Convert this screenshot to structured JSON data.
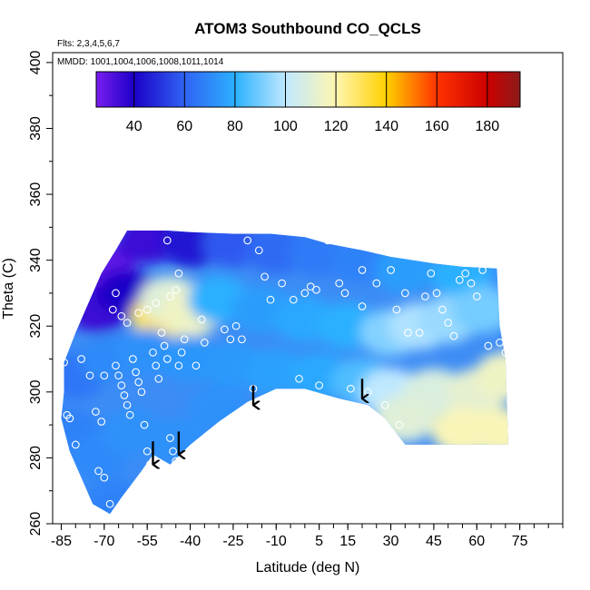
{
  "chart_data": {
    "type": "heatmap",
    "title": "ATOM3 Southbound CO_QCLS",
    "annotations": [
      "Flts: 2,3,4,5,6,7",
      "MMDD: 1001,1004,1006,1008,1011,1014"
    ],
    "xlabel": "Latitude (deg N)",
    "ylabel": "Theta (C)",
    "xlim": [
      -88,
      90
    ],
    "ylim": [
      260,
      403
    ],
    "x_ticks": [
      -85,
      -70,
      -55,
      -40,
      -25,
      -10,
      5,
      15,
      30,
      45,
      60,
      75
    ],
    "y_ticks": [
      260,
      280,
      300,
      320,
      340,
      360,
      380,
      400
    ],
    "x_tick_labels": [
      "-85",
      "-70",
      "-55",
      "-40",
      "-25",
      "-10",
      "5",
      "15",
      "30",
      "45",
      "60",
      "75"
    ],
    "y_tick_labels": [
      "260",
      "280",
      "300",
      "320",
      "340",
      "360",
      "380",
      "400"
    ],
    "colorbar": {
      "range": [
        25,
        193
      ],
      "ticks": [
        40,
        60,
        80,
        100,
        120,
        140,
        160,
        180
      ],
      "tick_labels": [
        "40",
        "60",
        "80",
        "100",
        "120",
        "140",
        "160",
        "180"
      ],
      "stops": [
        {
          "v": 25,
          "c": "#7a1df0"
        },
        {
          "v": 40,
          "c": "#1c00c8"
        },
        {
          "v": 60,
          "c": "#2f63f3"
        },
        {
          "v": 80,
          "c": "#2bb0ff"
        },
        {
          "v": 100,
          "c": "#bfe8ff"
        },
        {
          "v": 120,
          "c": "#fff6b0"
        },
        {
          "v": 140,
          "c": "#ffd000"
        },
        {
          "v": 160,
          "c": "#ff3300"
        },
        {
          "v": 180,
          "c": "#cc0000"
        },
        {
          "v": 193,
          "c": "#8c1a1a"
        }
      ]
    },
    "field_outline": [
      [
        -84,
        309
      ],
      [
        -80,
        318
      ],
      [
        -76,
        326
      ],
      [
        -71,
        336
      ],
      [
        -66,
        343
      ],
      [
        -62,
        349
      ],
      [
        -48,
        349
      ],
      [
        -40,
        348.5
      ],
      [
        -25,
        348
      ],
      [
        -12,
        348
      ],
      [
        0,
        347
      ],
      [
        8,
        345
      ],
      [
        20,
        343
      ],
      [
        30,
        341
      ],
      [
        45,
        339
      ],
      [
        55,
        338
      ],
      [
        67,
        337.5
      ],
      [
        68,
        320
      ],
      [
        70,
        310
      ],
      [
        71,
        284
      ],
      [
        35,
        284
      ],
      [
        28,
        292
      ],
      [
        22,
        296
      ],
      [
        12,
        298
      ],
      [
        0,
        301
      ],
      [
        -10,
        301
      ],
      [
        -20,
        297
      ],
      [
        -30,
        291
      ],
      [
        -40,
        284
      ],
      [
        -47,
        278
      ],
      [
        -53,
        281
      ],
      [
        -57,
        276
      ],
      [
        -64,
        268
      ],
      [
        -68,
        263
      ],
      [
        -74,
        266
      ],
      [
        -78,
        274
      ],
      [
        -82,
        282
      ],
      [
        -85,
        292
      ],
      [
        -84,
        300
      ]
    ],
    "values": [
      {
        "lat": -70,
        "theta": 338,
        "value": 30
      },
      {
        "lat": -55,
        "theta": 346,
        "value": 35
      },
      {
        "lat": -40,
        "theta": 345,
        "value": 45
      },
      {
        "lat": -25,
        "theta": 345,
        "value": 58
      },
      {
        "lat": -10,
        "theta": 343,
        "value": 62
      },
      {
        "lat": 5,
        "theta": 342,
        "value": 66
      },
      {
        "lat": 20,
        "theta": 340,
        "value": 68
      },
      {
        "lat": 35,
        "theta": 337,
        "value": 75
      },
      {
        "lat": 55,
        "theta": 335,
        "value": 80
      },
      {
        "lat": -72,
        "theta": 325,
        "value": 35
      },
      {
        "lat": -62,
        "theta": 330,
        "value": 40
      },
      {
        "lat": -50,
        "theta": 323,
        "value": 130
      },
      {
        "lat": -47,
        "theta": 328,
        "value": 110
      },
      {
        "lat": -40,
        "theta": 324,
        "value": 115
      },
      {
        "lat": -30,
        "theta": 328,
        "value": 80
      },
      {
        "lat": -15,
        "theta": 325,
        "value": 75
      },
      {
        "lat": 0,
        "theta": 322,
        "value": 78
      },
      {
        "lat": 15,
        "theta": 320,
        "value": 80
      },
      {
        "lat": 30,
        "theta": 318,
        "value": 92
      },
      {
        "lat": 40,
        "theta": 320,
        "value": 98
      },
      {
        "lat": 50,
        "theta": 322,
        "value": 95
      },
      {
        "lat": 62,
        "theta": 325,
        "value": 90
      },
      {
        "lat": -80,
        "theta": 305,
        "value": 65
      },
      {
        "lat": -68,
        "theta": 310,
        "value": 70
      },
      {
        "lat": -55,
        "theta": 312,
        "value": 72
      },
      {
        "lat": -40,
        "theta": 310,
        "value": 73
      },
      {
        "lat": -25,
        "theta": 308,
        "value": 74
      },
      {
        "lat": -10,
        "theta": 306,
        "value": 76
      },
      {
        "lat": 5,
        "theta": 305,
        "value": 78
      },
      {
        "lat": 20,
        "theta": 303,
        "value": 85
      },
      {
        "lat": 30,
        "theta": 300,
        "value": 100
      },
      {
        "lat": 45,
        "theta": 300,
        "value": 108
      },
      {
        "lat": 60,
        "theta": 300,
        "value": 112
      },
      {
        "lat": 70,
        "theta": 305,
        "value": 115
      },
      {
        "lat": -82,
        "theta": 288,
        "value": 68
      },
      {
        "lat": -72,
        "theta": 280,
        "value": 70
      },
      {
        "lat": -60,
        "theta": 288,
        "value": 72
      },
      {
        "lat": -45,
        "theta": 285,
        "value": 72
      },
      {
        "lat": -30,
        "theta": 295,
        "value": 72
      },
      {
        "lat": 35,
        "theta": 292,
        "value": 110
      },
      {
        "lat": 55,
        "theta": 288,
        "value": 118
      },
      {
        "lat": 68,
        "theta": 288,
        "value": 118
      },
      {
        "lat": -66,
        "theta": 266,
        "value": 68
      }
    ],
    "observation_points": [
      [
        -84,
        309
      ],
      [
        -83,
        293
      ],
      [
        -82,
        292
      ],
      [
        -80,
        284
      ],
      [
        -78,
        310
      ],
      [
        -75,
        305
      ],
      [
        -73,
        294
      ],
      [
        -71,
        291
      ],
      [
        -70,
        305
      ],
      [
        -72,
        276
      ],
      [
        -70,
        274
      ],
      [
        -68,
        266
      ],
      [
        -66,
        308
      ],
      [
        -65,
        305
      ],
      [
        -64,
        302
      ],
      [
        -63,
        299
      ],
      [
        -62,
        296
      ],
      [
        -61,
        293
      ],
      [
        -60,
        310
      ],
      [
        -59,
        306
      ],
      [
        -58,
        303
      ],
      [
        -57,
        300
      ],
      [
        -56,
        290
      ],
      [
        -55,
        282
      ],
      [
        -54,
        278
      ],
      [
        -53,
        312
      ],
      [
        -52,
        308
      ],
      [
        -51,
        304
      ],
      [
        -50,
        318
      ],
      [
        -49,
        314
      ],
      [
        -48,
        310
      ],
      [
        -47,
        286
      ],
      [
        -46,
        282
      ],
      [
        -45,
        279
      ],
      [
        -44,
        308
      ],
      [
        -43,
        312
      ],
      [
        -42,
        316
      ],
      [
        -66,
        330
      ],
      [
        -67,
        325
      ],
      [
        -64,
        323
      ],
      [
        -62,
        321
      ],
      [
        -58,
        324
      ],
      [
        -55,
        325
      ],
      [
        -52,
        327
      ],
      [
        -47,
        329
      ],
      [
        -45,
        331
      ],
      [
        -44,
        336
      ],
      [
        -48,
        346
      ],
      [
        -36,
        322
      ],
      [
        -35,
        315
      ],
      [
        -38,
        308
      ],
      [
        -28,
        319
      ],
      [
        -26,
        316
      ],
      [
        -24,
        320
      ],
      [
        -22,
        316
      ],
      [
        -18,
        301
      ],
      [
        -20,
        346
      ],
      [
        -16,
        343
      ],
      [
        -14,
        335
      ],
      [
        -12,
        328
      ],
      [
        -8,
        333
      ],
      [
        -6,
        349
      ],
      [
        -4,
        328
      ],
      [
        -2,
        304
      ],
      [
        0,
        330
      ],
      [
        2,
        332
      ],
      [
        4,
        331
      ],
      [
        5,
        302
      ],
      [
        6,
        348
      ],
      [
        8,
        346
      ],
      [
        12,
        333
      ],
      [
        14,
        330
      ],
      [
        16,
        301
      ],
      [
        18,
        345
      ],
      [
        20,
        337
      ],
      [
        20,
        326
      ],
      [
        22,
        300
      ],
      [
        25,
        333
      ],
      [
        28,
        296
      ],
      [
        30,
        337
      ],
      [
        32,
        325
      ],
      [
        35,
        330
      ],
      [
        36,
        318
      ],
      [
        40,
        318
      ],
      [
        42,
        329
      ],
      [
        44,
        336
      ],
      [
        46,
        330
      ],
      [
        48,
        325
      ],
      [
        50,
        321
      ],
      [
        52,
        317
      ],
      [
        54,
        334
      ],
      [
        56,
        336
      ],
      [
        58,
        333
      ],
      [
        60,
        329
      ],
      [
        62,
        337
      ],
      [
        64,
        314
      ],
      [
        68,
        315
      ],
      [
        70,
        312
      ],
      [
        33,
        290
      ]
    ],
    "arrows": [
      {
        "lat": -53,
        "theta_top": 285,
        "theta_tip": 278
      },
      {
        "lat": -44,
        "theta_top": 288,
        "theta_tip": 281
      },
      {
        "lat": -18,
        "theta_top": 302,
        "theta_tip": 296
      },
      {
        "lat": 20,
        "theta_top": 304,
        "theta_tip": 298
      }
    ]
  }
}
